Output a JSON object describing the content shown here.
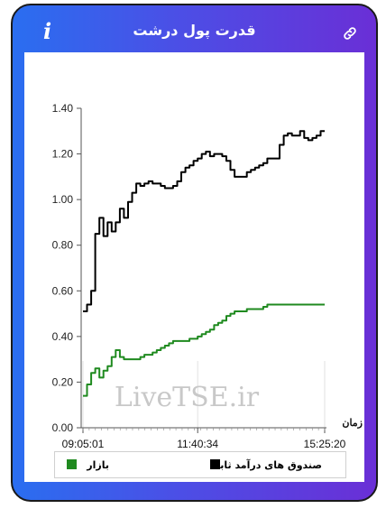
{
  "header": {
    "title": "قدرت پول درشت",
    "info_icon": "info-icon",
    "link_icon": "link-icon"
  },
  "watermark": "LiveTSE.ir",
  "chart_data": {
    "type": "line",
    "xlabel": "زمان",
    "ylabel": "",
    "x_ticks": [
      "09:05:01",
      "11:40:34",
      "15:25:20"
    ],
    "y_ticks": [
      "0.00",
      "0.20",
      "0.40",
      "0.60",
      "0.80",
      "1.00",
      "1.20",
      "1.40"
    ],
    "ylim": [
      0,
      1.4
    ],
    "legend_position": "bottom",
    "series": [
      {
        "name": "صندوق های درآمد ثابت",
        "color": "#000000",
        "values": [
          0.51,
          0.54,
          0.6,
          0.85,
          0.92,
          0.84,
          0.9,
          0.86,
          0.9,
          0.96,
          0.92,
          0.99,
          1.03,
          1.07,
          1.06,
          1.07,
          1.08,
          1.07,
          1.07,
          1.06,
          1.05,
          1.05,
          1.06,
          1.08,
          1.12,
          1.14,
          1.15,
          1.17,
          1.18,
          1.2,
          1.21,
          1.19,
          1.2,
          1.2,
          1.19,
          1.17,
          1.13,
          1.1,
          1.1,
          1.1,
          1.12,
          1.13,
          1.14,
          1.15,
          1.16,
          1.18,
          1.18,
          1.18,
          1.24,
          1.28,
          1.29,
          1.28,
          1.28,
          1.3,
          1.27,
          1.26,
          1.27,
          1.28,
          1.3,
          1.3
        ]
      },
      {
        "name": "بازار",
        "color": "#1f8a1f",
        "values": [
          0.14,
          0.19,
          0.24,
          0.26,
          0.22,
          0.25,
          0.27,
          0.31,
          0.34,
          0.31,
          0.3,
          0.3,
          0.3,
          0.3,
          0.31,
          0.32,
          0.32,
          0.33,
          0.34,
          0.35,
          0.36,
          0.37,
          0.38,
          0.38,
          0.38,
          0.38,
          0.39,
          0.39,
          0.4,
          0.41,
          0.42,
          0.43,
          0.45,
          0.46,
          0.47,
          0.49,
          0.5,
          0.51,
          0.51,
          0.51,
          0.52,
          0.52,
          0.52,
          0.52,
          0.53,
          0.54,
          0.54,
          0.54,
          0.54,
          0.54,
          0.54,
          0.54,
          0.54,
          0.54,
          0.54,
          0.54,
          0.54,
          0.54,
          0.54,
          0.54
        ]
      }
    ]
  }
}
